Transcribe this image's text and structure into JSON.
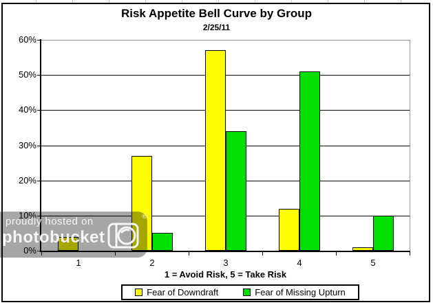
{
  "chart_data": {
    "type": "bar",
    "title": "Risk Appetite Bell Curve by Group",
    "subtitle": "2/25/11",
    "xlabel": "1 = Avoid Risk, 5 = Take Risk",
    "ylabel": "",
    "categories": [
      "1",
      "2",
      "3",
      "4",
      "5"
    ],
    "series": [
      {
        "name": "Fear of Downdraft",
        "color": "#ffff00",
        "values": [
          4,
          27,
          57,
          12,
          1
        ]
      },
      {
        "name": "Fear of Missing Upturn",
        "color": "#00e000",
        "values": [
          0,
          5,
          34,
          51,
          10
        ]
      }
    ],
    "ylim": [
      0,
      60
    ],
    "ytick_step": 10,
    "yticks": [
      "0%",
      "10%",
      "20%",
      "30%",
      "40%",
      "50%",
      "60%"
    ],
    "grid": true,
    "gridline_color": "#000000",
    "top_border_color": "#999999",
    "legend_position": "bottom"
  },
  "watermark": {
    "line1": "proudly hosted on",
    "brand": "photobucket",
    "registered_mark": "®"
  }
}
